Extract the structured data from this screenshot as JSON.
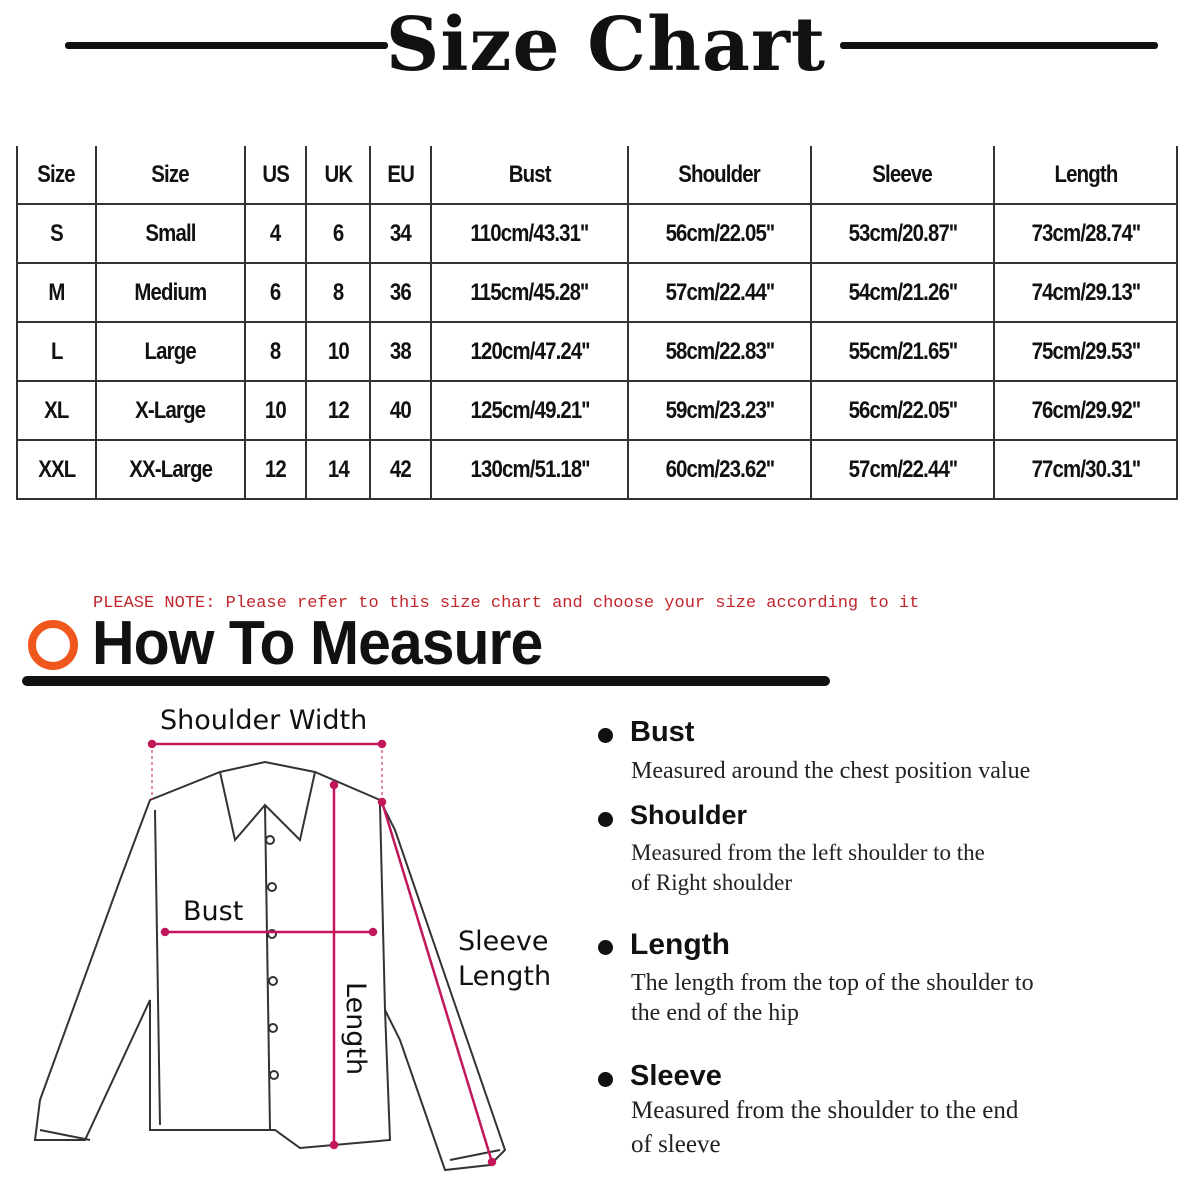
{
  "title": "Size Chart",
  "table": {
    "headers": [
      "Size",
      "Size",
      "US",
      "UK",
      "EU",
      "Bust",
      "Shoulder",
      "Sleeve",
      "Length"
    ],
    "rows": [
      [
        "S",
        "Small",
        "4",
        "6",
        "34",
        "110cm/43.31''",
        "56cm/22.05''",
        "53cm/20.87''",
        "73cm/28.74''"
      ],
      [
        "M",
        "Medium",
        "6",
        "8",
        "36",
        "115cm/45.28''",
        "57cm/22.44''",
        "54cm/21.26''",
        "74cm/29.13''"
      ],
      [
        "L",
        "Large",
        "8",
        "10",
        "38",
        "120cm/47.24''",
        "58cm/22.83''",
        "55cm/21.65''",
        "75cm/29.53''"
      ],
      [
        "XL",
        "X-Large",
        "10",
        "12",
        "40",
        "125cm/49.21''",
        "59cm/23.23''",
        "56cm/22.05''",
        "76cm/29.92''"
      ],
      [
        "XXL",
        "XX-Large",
        "12",
        "14",
        "42",
        "130cm/51.18''",
        "60cm/23.62''",
        "57cm/22.44''",
        "77cm/30.31''"
      ]
    ]
  },
  "note": "PLEASE NOTE: Please refer to this size chart and choose your size according to it",
  "how_to_measure": "How To Measure",
  "diagram": {
    "shoulder_width": "Shoulder Width",
    "bust": "Bust",
    "sleeve_length_1": "Sleeve",
    "sleeve_length_2": "Length",
    "length": "Length"
  },
  "colors": {
    "accent": "#f0571d",
    "note": "#c0262c",
    "measure_line": "#c2185b"
  },
  "measures": [
    {
      "label": "Bust",
      "desc": [
        "Measured around the chest position value"
      ]
    },
    {
      "label": "Shoulder",
      "desc": [
        "Measured from the left shoulder to the",
        "of Right shoulder"
      ]
    },
    {
      "label": "Length",
      "desc": [
        "The length from the top of the shoulder to",
        "the end of the hip"
      ]
    },
    {
      "label": "Sleeve",
      "desc": [
        "Measured from the shoulder to the end",
        "of sleeve"
      ]
    }
  ]
}
